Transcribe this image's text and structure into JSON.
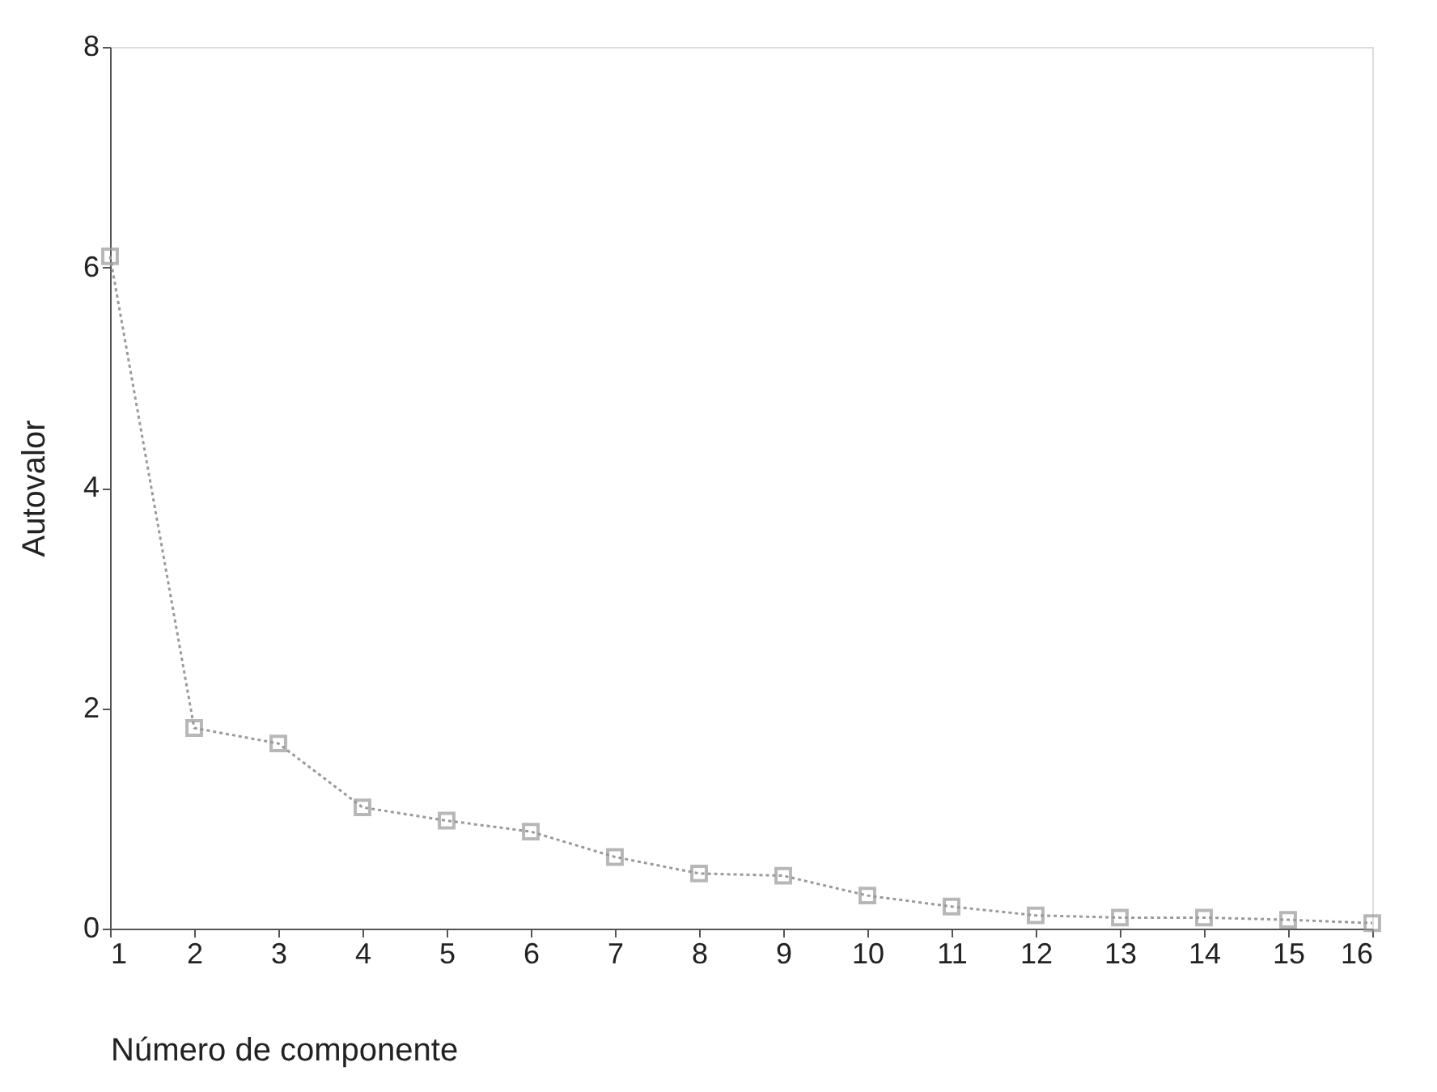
{
  "chart_data": {
    "type": "line",
    "xlabel": "Número de componente",
    "ylabel": "Autovalor",
    "x": [
      1,
      2,
      3,
      4,
      5,
      6,
      7,
      8,
      9,
      10,
      11,
      12,
      13,
      14,
      15,
      16
    ],
    "series": [
      {
        "color": "#9a9a9a",
        "values": [
          6.1,
          1.82,
          1.68,
          1.1,
          0.98,
          0.88,
          0.65,
          0.5,
          0.48,
          0.3,
          0.2,
          0.12,
          0.1,
          0.1,
          0.08,
          0.05
        ]
      }
    ],
    "xlim": [
      1,
      16
    ],
    "xticks": [
      1,
      2,
      3,
      4,
      5,
      6,
      7,
      8,
      9,
      10,
      11,
      12,
      13,
      14,
      15,
      16
    ],
    "ylim": [
      0,
      8
    ],
    "yticks": [
      0,
      2,
      4,
      6,
      8
    ],
    "grid": false,
    "marker": "square",
    "line_style": "dotted"
  }
}
